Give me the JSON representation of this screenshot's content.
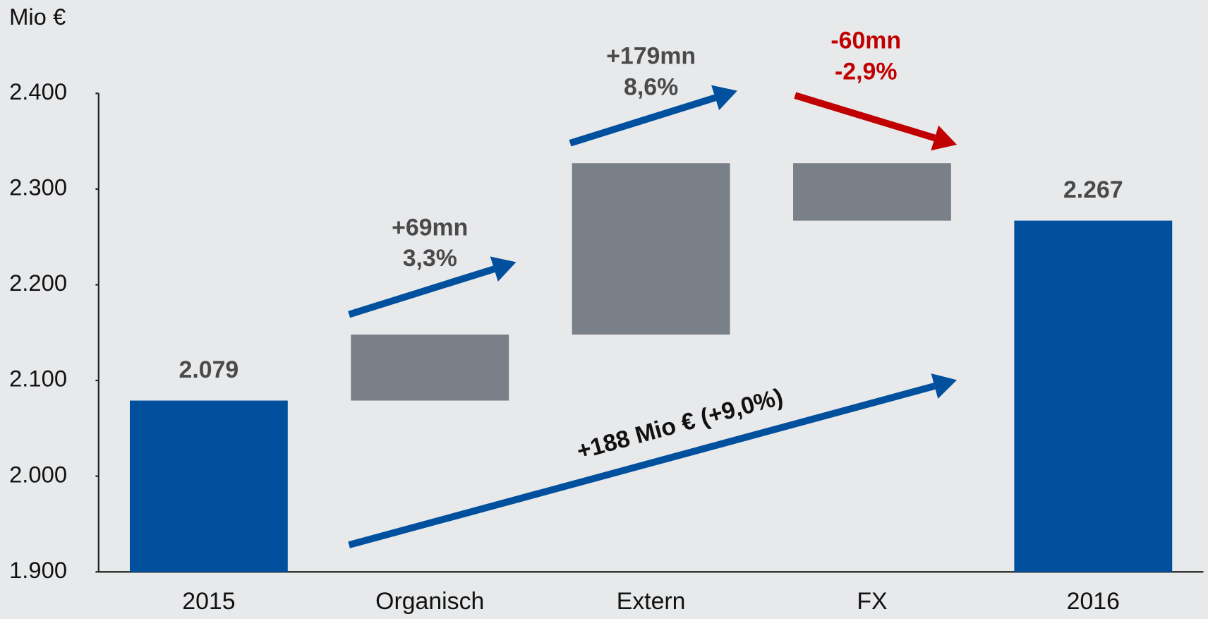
{
  "chart_data": {
    "type": "waterfall",
    "y_label": "Mio €",
    "categories": [
      "2015",
      "Organisch",
      "Extern",
      "FX",
      "2016"
    ],
    "values": [
      2079,
      69,
      179,
      -60,
      2267
    ],
    "value_labels": [
      "2.079",
      "+69mn",
      "+179mn",
      "-60mn",
      "2.267"
    ],
    "percent_labels": [
      null,
      "3,3%",
      "8,6%",
      "-2,9%",
      null
    ],
    "is_total": [
      true,
      false,
      false,
      false,
      true
    ],
    "total_color": "#00509e",
    "delta_color": "#7a8088",
    "increase_arrow_color": "#00509e",
    "decrease_arrow_color": "#c00000",
    "decrease_label_color": "#c00000",
    "annotation": "+188 Mio € (+9,0%)",
    "ylim": [
      1900,
      2400
    ],
    "yticks": [
      {
        "value": 1900,
        "label": "1.900"
      },
      {
        "value": 2000,
        "label": "2.000"
      },
      {
        "value": 2100,
        "label": "2.100"
      },
      {
        "value": 2200,
        "label": "2.200"
      },
      {
        "value": 2300,
        "label": "2.300"
      },
      {
        "value": 2400,
        "label": "2.400"
      }
    ]
  }
}
